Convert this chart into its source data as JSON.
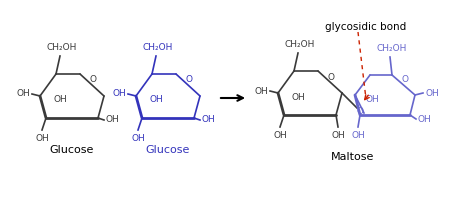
{
  "bg_color": "#ffffff",
  "col_black": "#3a3a3a",
  "col_blue": "#3333bb",
  "col_blue_light": "#6666cc",
  "col_red": "#cc2200",
  "title": "glycosidic bond",
  "label_g1": "Glucose",
  "label_g2": "Glucose",
  "label_m": "Maltose",
  "fig_width": 4.5,
  "fig_height": 2.0,
  "dpi": 100
}
